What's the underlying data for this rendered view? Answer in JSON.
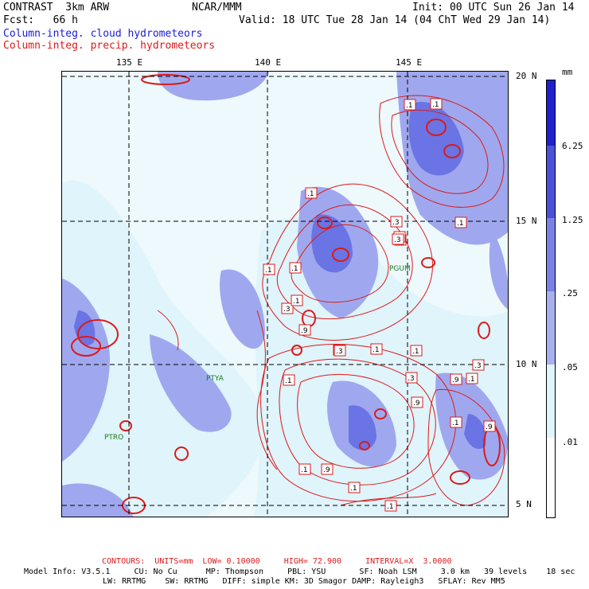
{
  "header": {
    "model": "CONTRAST  3km ARW",
    "org": "NCAR/MMM",
    "init": "Init: 00 UTC Sun 26 Jan 14",
    "fcst": "Fcst:   66 h",
    "valid": "Valid: 18 UTC Tue 28 Jan 14 (04 ChT Wed 29 Jan 14)",
    "field1": "Column-integ. cloud hydrometeors",
    "field2": "Column-integ. precip. hydrometeors"
  },
  "colors": {
    "field1": "#1a1adc",
    "field2": "#dc1a1a",
    "shade_light": "#dff4fb",
    "shade_mid": "#9fa8ee",
    "shade_dark": "#6a74e4",
    "shade_darkest": "#2020d0"
  },
  "map": {
    "lon_labels": [
      "135 E",
      "140 E",
      "145 E"
    ],
    "lat_labels": [
      "20 N",
      "15 N",
      "10 N",
      "5 N"
    ],
    "stations": [
      "PGUM",
      "PTYA",
      "PTRO"
    ],
    "contour_labels": [
      ".1",
      ".1",
      ".3",
      ".1",
      ".1",
      ".9",
      ".3",
      ".3",
      ".1",
      ".3",
      ".3",
      ".1",
      ".3",
      ".3",
      ".1",
      ".1",
      ".1",
      ".9",
      ".1",
      ".9",
      ".1",
      ".9",
      ".1",
      ".1",
      ".3",
      ".9",
      ".3",
      ".1",
      ".1"
    ]
  },
  "colorbar": {
    "unit": "mm",
    "labels": [
      "6.25",
      "1.25",
      ".25",
      ".05",
      ".01"
    ]
  },
  "footer": {
    "contours": "CONTOURS:  UNITS=mm  LOW= 0.10000     HIGH= 72.900     INTERVAL=X  3.0000",
    "info1": "Model Info: V3.5.1     CU: No Cu      MP: Thompson     PBL: YSU       SF: Noah LSM     3.0 km   39 levels    18 sec",
    "info2": "LW: RRTMG    SW: RRTMG   DIFF: simple KM: 3D Smagor DAMP: Rayleigh3   SFLAY: Rev MM5"
  }
}
